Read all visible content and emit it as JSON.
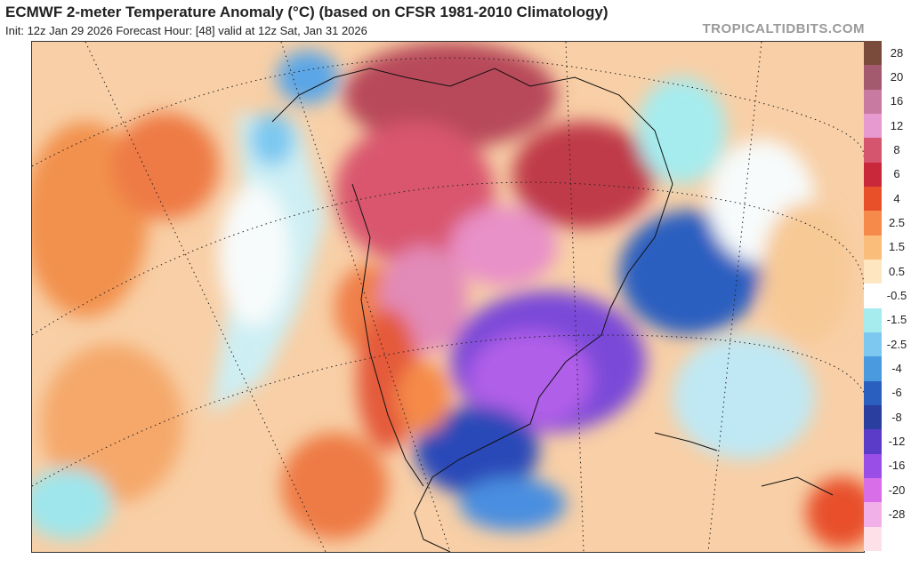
{
  "header": {
    "title": "ECMWF 2-meter Temperature Anomaly (°C) (based on CFSR 1981-2010 Climatology)",
    "subtitle": "Init: 12z Jan 29 2026   Forecast Hour: [48]   valid at 12z Sat, Jan 31 2026",
    "brand": "TROPICALTIDBITS.COM"
  },
  "legend": {
    "unit": "°C",
    "bins": [
      {
        "label": "28",
        "color": "#7a4a3a"
      },
      {
        "label": "20",
        "color": "#a35a6e"
      },
      {
        "label": "16",
        "color": "#c97aa0"
      },
      {
        "label": "12",
        "color": "#e69ad0"
      },
      {
        "label": "8",
        "color": "#d6556e"
      },
      {
        "label": "6",
        "color": "#c8283a"
      },
      {
        "label": "4",
        "color": "#e8502a"
      },
      {
        "label": "2.5",
        "color": "#f58a4a"
      },
      {
        "label": "1.5",
        "color": "#fbbd7a"
      },
      {
        "label": "0.5",
        "color": "#fde6c0"
      },
      {
        "label": "-0.5",
        "color": "#ffffff"
      },
      {
        "label": "-1.5",
        "color": "#a6ecef"
      },
      {
        "label": "-2.5",
        "color": "#7cc8f0"
      },
      {
        "label": "-4",
        "color": "#4a9ae0"
      },
      {
        "label": "-6",
        "color": "#2a5fc0"
      },
      {
        "label": "-8",
        "color": "#2a3ea0"
      },
      {
        "label": "-12",
        "color": "#5a3cc8"
      },
      {
        "label": "-16",
        "color": "#9a4ee8"
      },
      {
        "label": "-20",
        "color": "#d86ee8"
      },
      {
        "label": "-28",
        "color": "#f2b0e8"
      },
      {
        "label": "",
        "color": "#fde0e8"
      }
    ]
  }
}
